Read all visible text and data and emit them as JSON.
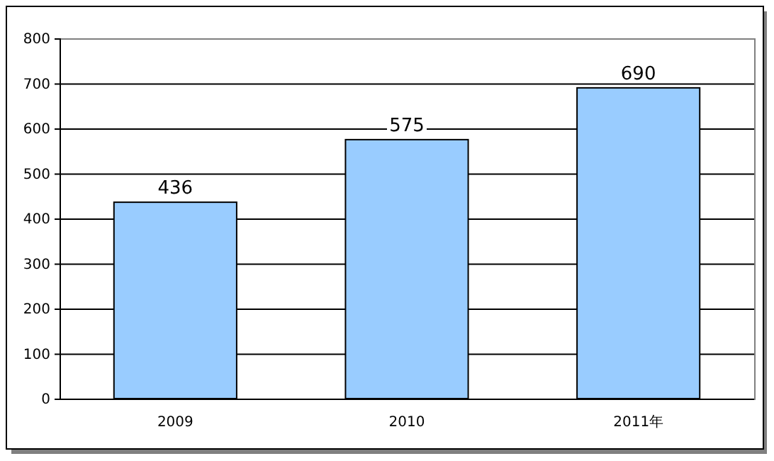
{
  "chart_data": {
    "type": "bar",
    "categories": [
      "2009",
      "2010",
      "2011年"
    ],
    "values": [
      436,
      575,
      690
    ],
    "color": "#99ccff",
    "ylim": [
      0,
      800
    ],
    "yticks": [
      0,
      100,
      200,
      300,
      400,
      500,
      600,
      700,
      800
    ],
    "grid": "y",
    "data_labels": true
  }
}
